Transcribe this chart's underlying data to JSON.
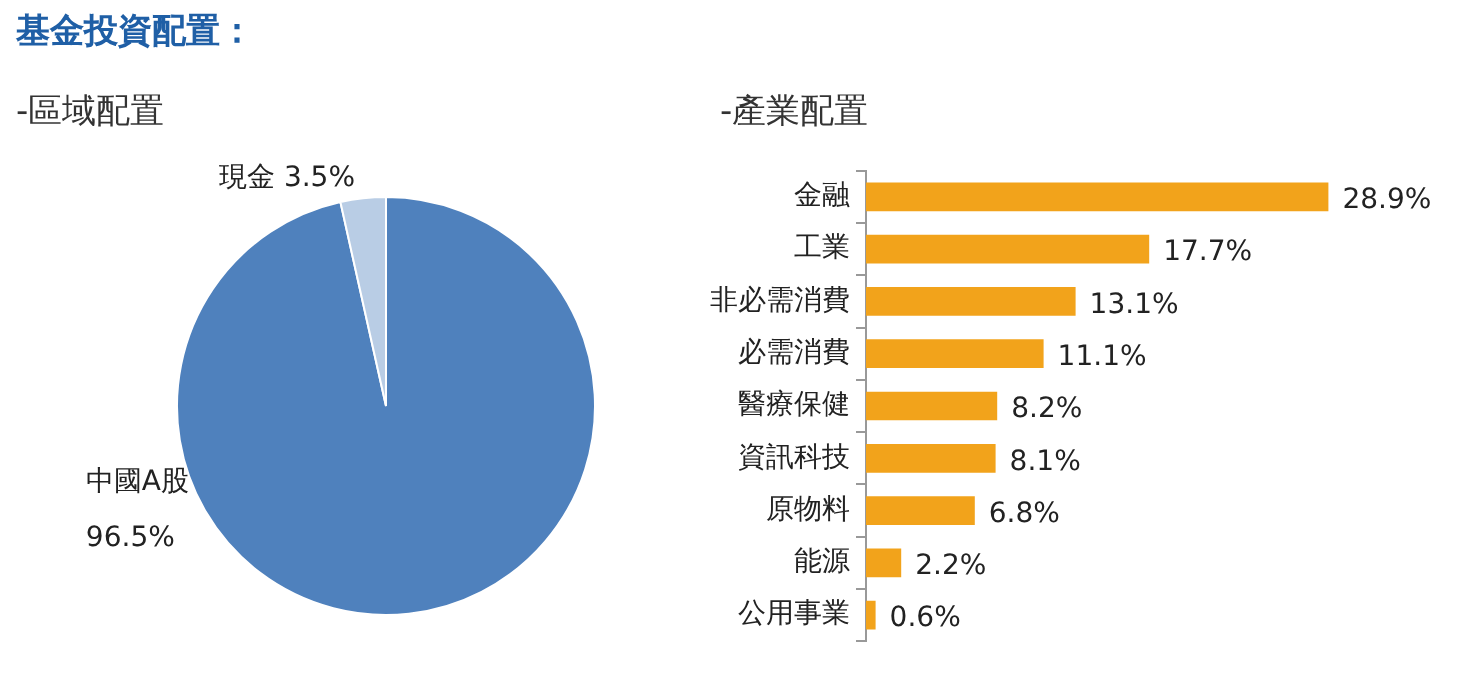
{
  "chart_data": [
    {
      "type": "pie",
      "title": "基金投資配置：",
      "subtitle": "-區域配置",
      "categories": [
        "中國A股",
        "現金"
      ],
      "values": [
        96.5,
        3.5
      ],
      "colors": [
        "#4f81bd",
        "#b9cde5"
      ],
      "value_labels": [
        "96.5%",
        "3.5%"
      ]
    },
    {
      "type": "bar",
      "orientation": "horizontal",
      "title": "-產業配置",
      "categories": [
        "金融",
        "工業",
        "非必需消費",
        "必需消費",
        "醫療保健",
        "資訊科技",
        "原物料",
        "能源",
        "公用事業"
      ],
      "values": [
        28.9,
        17.7,
        13.1,
        11.1,
        8.2,
        8.1,
        6.8,
        2.2,
        0.6
      ],
      "color": "#f2a31b",
      "value_labels": [
        "28.9%",
        "17.7%",
        "13.1%",
        "11.1%",
        "8.2%",
        "8.1%",
        "6.8%",
        "2.2%",
        "0.6%"
      ]
    }
  ]
}
